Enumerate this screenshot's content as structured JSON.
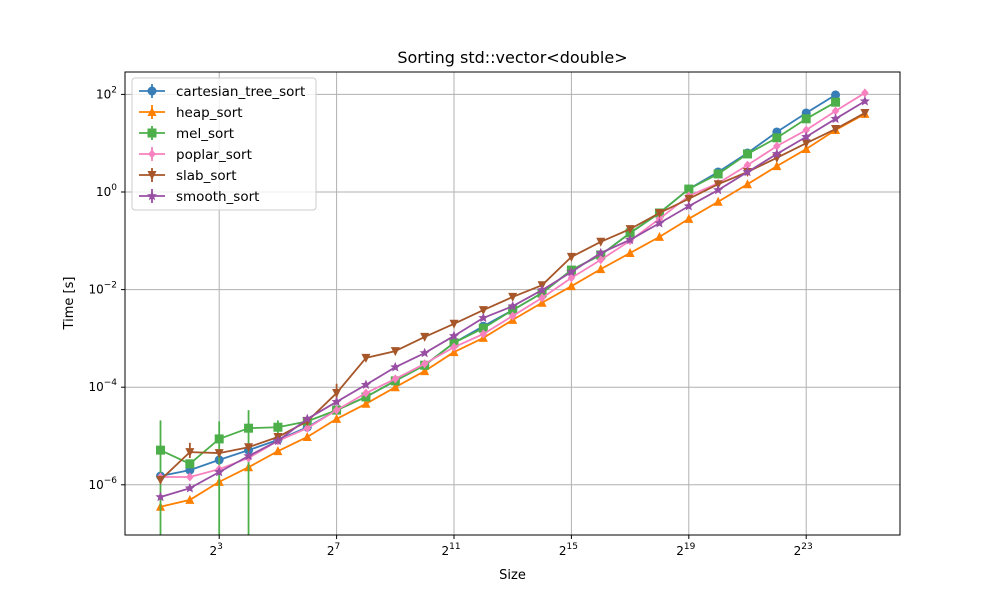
{
  "chart_data": {
    "type": "line",
    "title": "Sorting std::vector<double>",
    "xlabel": "Size",
    "ylabel": "Time [s]",
    "xscale": "log2",
    "yscale": "log10",
    "x_exponents": [
      1,
      2,
      3,
      4,
      5,
      6,
      7,
      8,
      9,
      10,
      11,
      12,
      13,
      14,
      15,
      16,
      17,
      18,
      19,
      20,
      21,
      22,
      23,
      24,
      25
    ],
    "x_ticks": [
      {
        "base": "2",
        "exp": "3",
        "e": 3
      },
      {
        "base": "2",
        "exp": "7",
        "e": 7
      },
      {
        "base": "2",
        "exp": "11",
        "e": 11
      },
      {
        "base": "2",
        "exp": "15",
        "e": 15
      },
      {
        "base": "2",
        "exp": "19",
        "e": 19
      },
      {
        "base": "2",
        "exp": "23",
        "e": 23
      }
    ],
    "y_ticks": [
      {
        "base": "10",
        "exp": "2",
        "e": 2
      },
      {
        "base": "10",
        "exp": "0",
        "e": 0
      },
      {
        "base": "10",
        "exp": "−2",
        "e": -2
      },
      {
        "base": "10",
        "exp": "−4",
        "e": -4
      },
      {
        "base": "10",
        "exp": "−6",
        "e": -6
      }
    ],
    "xlim_exp": [
      -0.2,
      26.0
    ],
    "ylim_log10": [
      -7.0,
      2.45
    ],
    "grid": true,
    "legend_position": "upper left",
    "series": [
      {
        "name": "cartesian_tree_sort",
        "color": "#377eb8",
        "marker": "circle",
        "log10_values": [
          -5.82,
          -5.7,
          -5.49,
          -5.29,
          -5.08,
          -4.82,
          -4.47,
          -4.2,
          -3.87,
          -3.55,
          -3.09,
          -2.75,
          -2.42,
          -2.07,
          -1.6,
          -1.29,
          -0.84,
          -0.43,
          0.06,
          0.41,
          0.8,
          1.23,
          1.62,
          1.99
        ],
        "errors": []
      },
      {
        "name": "heap_sort",
        "color": "#ff7f00",
        "marker": "triangle-up",
        "log10_values": [
          -6.45,
          -6.31,
          -5.94,
          -5.64,
          -5.31,
          -5.02,
          -4.65,
          -4.34,
          -4.0,
          -3.67,
          -3.28,
          -2.99,
          -2.62,
          -2.27,
          -1.93,
          -1.58,
          -1.25,
          -0.92,
          -0.55,
          -0.2,
          0.16,
          0.53,
          0.88,
          1.27,
          1.6
        ],
        "errors": []
      },
      {
        "name": "mel_sort",
        "color": "#4daf4a",
        "marker": "square",
        "log10_values": [
          -5.29,
          -5.57,
          -5.06,
          -4.84,
          -4.82,
          -4.7,
          -4.47,
          -4.2,
          -3.87,
          -3.55,
          -3.09,
          -2.79,
          -2.42,
          -2.07,
          -1.6,
          -1.29,
          -0.84,
          -0.43,
          0.06,
          0.37,
          0.78,
          1.11,
          1.5,
          1.84
        ],
        "errors": [
          {
            "i": 0,
            "lo": -7.2,
            "hi": -4.68
          },
          {
            "i": 2,
            "lo": -7.2,
            "hi": -4.7
          },
          {
            "i": 3,
            "lo": -7.2,
            "hi": -4.47
          },
          {
            "i": 4,
            "lo": -5.1,
            "hi": -4.68
          }
        ]
      },
      {
        "name": "poplar_sort",
        "color": "#f781bf",
        "marker": "diamond",
        "log10_values": [
          -5.84,
          -5.84,
          -5.68,
          -5.45,
          -5.1,
          -4.84,
          -4.47,
          -4.12,
          -3.83,
          -3.52,
          -3.18,
          -2.91,
          -2.54,
          -2.17,
          -1.76,
          -1.39,
          -1.0,
          -0.55,
          -0.08,
          0.18,
          0.55,
          0.94,
          1.27,
          1.66,
          2.03
        ],
        "errors": []
      },
      {
        "name": "slab_sort",
        "color": "#a65628",
        "marker": "triangle-down",
        "log10_values": [
          -5.9,
          -5.33,
          -5.35,
          -5.23,
          -5.02,
          -4.7,
          -4.12,
          -3.4,
          -3.26,
          -2.97,
          -2.7,
          -2.42,
          -2.15,
          -1.91,
          -1.33,
          -1.02,
          -0.76,
          -0.43,
          -0.14,
          0.16,
          0.41,
          0.7,
          1.0,
          1.29,
          1.62
        ],
        "errors": [
          {
            "i": 1,
            "lo": -5.45,
            "hi": -5.14
          },
          {
            "i": 6,
            "lo": -4.33,
            "hi": -3.93
          }
        ]
      },
      {
        "name": "smooth_sort",
        "color": "#984ea3",
        "marker": "star",
        "log10_values": [
          -6.25,
          -6.07,
          -5.74,
          -5.41,
          -5.1,
          -4.65,
          -4.3,
          -3.95,
          -3.59,
          -3.3,
          -2.95,
          -2.58,
          -2.34,
          -2.01,
          -1.64,
          -1.25,
          -0.98,
          -0.64,
          -0.29,
          0.04,
          0.41,
          0.78,
          1.13,
          1.5,
          1.86
        ],
        "errors": []
      }
    ]
  }
}
